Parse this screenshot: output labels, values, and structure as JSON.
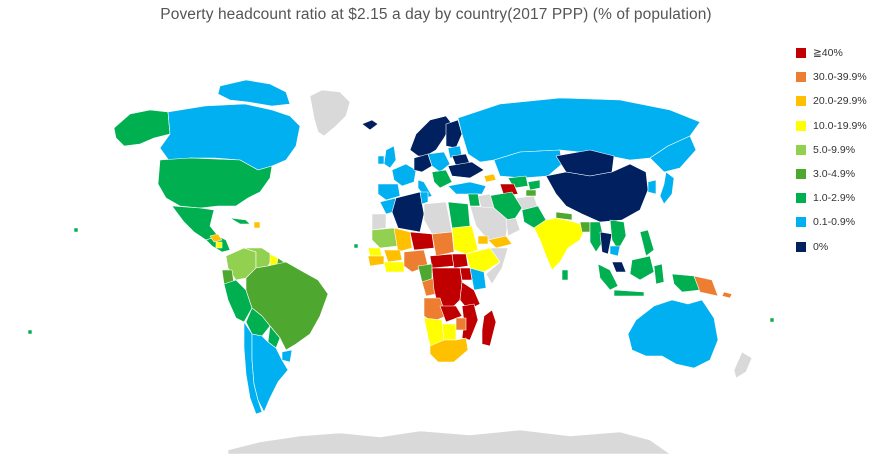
{
  "title": "Poverty headcount ratio at $2.15 a day by country(2017 PPP) (% of population)",
  "colors": {
    "ge40": "#c00000",
    "r30_39": "#ed7d31",
    "r20_29": "#ffc000",
    "r10_19": "#ffff00",
    "r5_9": "#92d050",
    "r3_4": "#4ea72e",
    "r1_2": "#00b050",
    "r01_09": "#00b0f0",
    "zero": "#002060",
    "nodata": "#d9d9d9"
  },
  "legend": [
    {
      "label": "≧40%",
      "color": "#c00000"
    },
    {
      "label": "30.0-39.9%",
      "color": "#ed7d31"
    },
    {
      "label": "20.0-29.9%",
      "color": "#ffc000"
    },
    {
      "label": "10.0-19.9%",
      "color": "#ffff00"
    },
    {
      "label": "5.0-9.9%",
      "color": "#92d050"
    },
    {
      "label": "3.0-4.9%",
      "color": "#4ea72e"
    },
    {
      "label": "1.0-2.9%",
      "color": "#00b050"
    },
    {
      "label": "0.1-0.9%",
      "color": "#00b0f0"
    },
    {
      "label": "0%",
      "color": "#002060"
    }
  ]
}
